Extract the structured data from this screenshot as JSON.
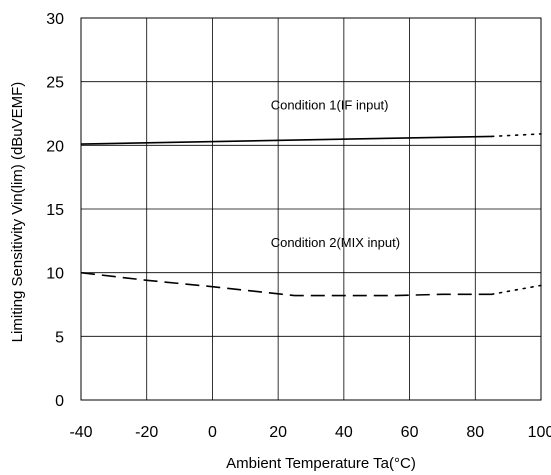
{
  "chart_data": {
    "type": "line",
    "xlabel": "Ambient Temperature Ta(°C)",
    "ylabel": "Limiting Sensitivity Vin(lim) (dBuVEMF)",
    "xlim": [
      -40,
      100
    ],
    "ylim": [
      0,
      30
    ],
    "xticks": [
      "-40",
      "-20",
      "0",
      "20",
      "40",
      "60",
      "80",
      "100"
    ],
    "yticks": [
      "0",
      "5",
      "10",
      "15",
      "20",
      "25",
      "30"
    ],
    "grid": true,
    "series": [
      {
        "style": "solid-then-dotted",
        "solid_x": [
          -40,
          85
        ],
        "solid_y": [
          20.1,
          20.7
        ],
        "dotted_x": [
          85,
          100
        ],
        "dotted_y": [
          20.7,
          20.9
        ]
      },
      {
        "style": "dashed-then-dotted",
        "solid_x": [
          -40,
          -20,
          0,
          25,
          40,
          55,
          70,
          85
        ],
        "solid_y": [
          10.0,
          9.4,
          8.9,
          8.2,
          8.2,
          8.2,
          8.3,
          8.3
        ],
        "dotted_x": [
          85,
          100
        ],
        "dotted_y": [
          8.3,
          9.0
        ]
      }
    ],
    "annotations": [
      {
        "text": "Condition 1(IF input)",
        "x": 8,
        "y": 22.8
      },
      {
        "text": "Condition 2(MIX input)",
        "x": 8,
        "y": 12.0
      }
    ]
  }
}
